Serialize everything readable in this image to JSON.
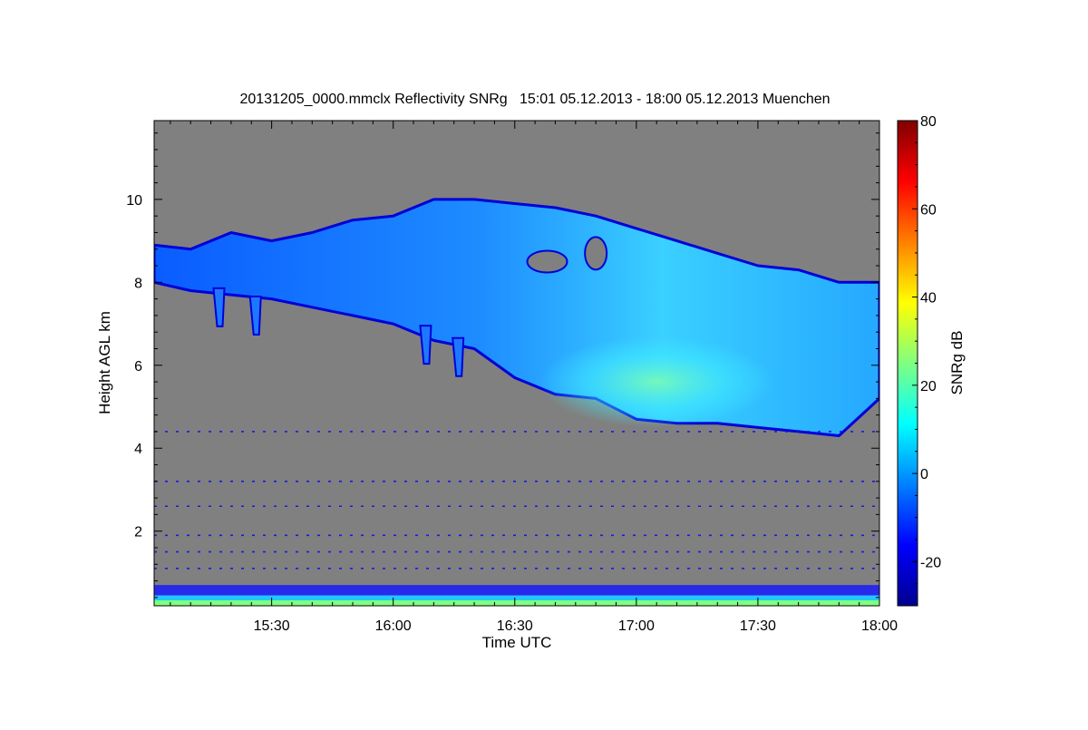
{
  "chart_data": {
    "type": "heatmap",
    "title": "20131205_0000.mmclx Reflectivity SNRg   15:01 05.12.2013 - 18:00 05.12.2013 Muenchen",
    "xlabel": "Time UTC",
    "ylabel": "Height AGL km",
    "colorbar_label": "SNRg dB",
    "x_range": [
      "15:01",
      "18:00"
    ],
    "x_ticks": [
      "15:30",
      "16:00",
      "16:30",
      "17:00",
      "17:30",
      "18:00"
    ],
    "ylim": [
      0.2,
      11.9
    ],
    "y_ticks": [
      2,
      4,
      6,
      8,
      10
    ],
    "colorbar_range": [
      -30,
      80
    ],
    "colorbar_ticks": [
      -20,
      0,
      20,
      40,
      60,
      80
    ],
    "background_color": "#808080",
    "colormap": [
      "#00008f",
      "#0000ff",
      "#0080ff",
      "#00ffff",
      "#80ff80",
      "#ffff00",
      "#ff8000",
      "#ff0000",
      "#800000"
    ],
    "cloud_layer": {
      "top_km": [
        {
          "time": "15:01",
          "value": 8.9
        },
        {
          "time": "15:10",
          "value": 8.8
        },
        {
          "time": "15:20",
          "value": 9.2
        },
        {
          "time": "15:30",
          "value": 9.0
        },
        {
          "time": "15:40",
          "value": 9.2
        },
        {
          "time": "15:50",
          "value": 9.5
        },
        {
          "time": "16:00",
          "value": 9.6
        },
        {
          "time": "16:10",
          "value": 10.0
        },
        {
          "time": "16:20",
          "value": 10.0
        },
        {
          "time": "16:30",
          "value": 9.9
        },
        {
          "time": "16:40",
          "value": 9.8
        },
        {
          "time": "16:50",
          "value": 9.6
        },
        {
          "time": "17:00",
          "value": 9.3
        },
        {
          "time": "17:10",
          "value": 9.0
        },
        {
          "time": "17:20",
          "value": 8.7
        },
        {
          "time": "17:30",
          "value": 8.4
        },
        {
          "time": "17:40",
          "value": 8.3
        },
        {
          "time": "17:50",
          "value": 8.0
        },
        {
          "time": "18:00",
          "value": 8.0
        }
      ],
      "base_km": [
        {
          "time": "15:01",
          "value": 8.0
        },
        {
          "time": "15:10",
          "value": 7.8
        },
        {
          "time": "15:20",
          "value": 7.7
        },
        {
          "time": "15:30",
          "value": 7.6
        },
        {
          "time": "15:40",
          "value": 7.4
        },
        {
          "time": "15:50",
          "value": 7.2
        },
        {
          "time": "16:00",
          "value": 7.0
        },
        {
          "time": "16:10",
          "value": 6.6
        },
        {
          "time": "16:20",
          "value": 6.4
        },
        {
          "time": "16:30",
          "value": 5.7
        },
        {
          "time": "16:40",
          "value": 5.3
        },
        {
          "time": "16:50",
          "value": 5.2
        },
        {
          "time": "17:00",
          "value": 4.7
        },
        {
          "time": "17:10",
          "value": 4.6
        },
        {
          "time": "17:20",
          "value": 4.6
        },
        {
          "time": "17:30",
          "value": 4.5
        },
        {
          "time": "17:40",
          "value": 4.4
        },
        {
          "time": "17:50",
          "value": 4.3
        },
        {
          "time": "18:00",
          "value": 5.2
        }
      ],
      "typical_snr_db": -5,
      "core_snr_db": 15
    }
  }
}
